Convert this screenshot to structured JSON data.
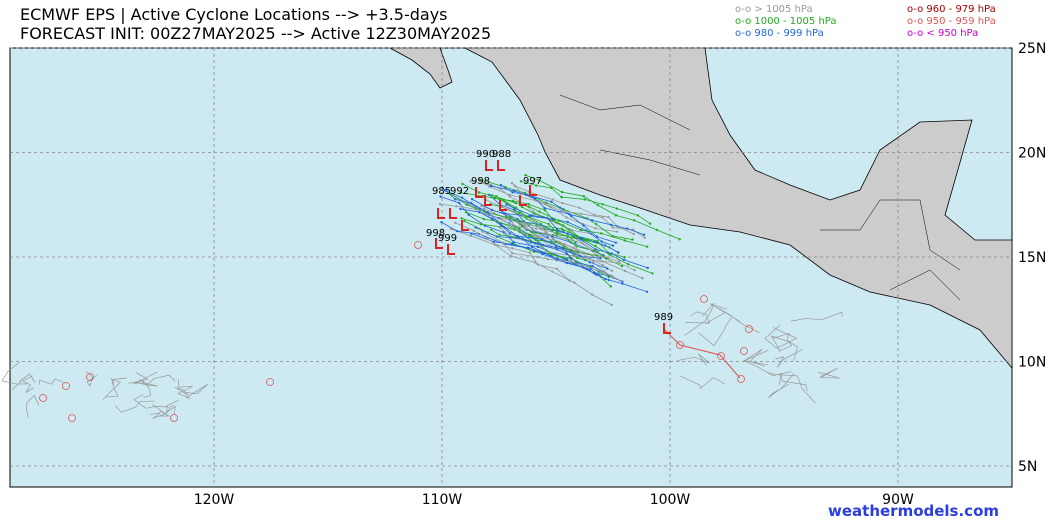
{
  "header": {
    "title_line1": "ECMWF EPS | Active Cyclone Locations --> +3.5-days",
    "title_line2": "FORECAST INIT: 00Z27MAY2025 --> Active 12Z30MAY2025"
  },
  "legend": [
    {
      "label": "o-o > 1005 hPa",
      "color": "#999999"
    },
    {
      "label": "o-o 1000 - 1005 hPa",
      "color": "#22aa22"
    },
    {
      "label": "o-o 980 - 999 hPa",
      "color": "#2266dd"
    },
    {
      "label": "o-o 960 - 979 hPa",
      "color": "#aa0000"
    },
    {
      "label": "o-o 950 - 959 hPa",
      "color": "#dd5555"
    },
    {
      "label": "o-o < 950 hPa",
      "color": "#cc00cc"
    }
  ],
  "lon_ticks": [
    {
      "value": -120,
      "label": "120W"
    },
    {
      "value": -110,
      "label": "110W"
    },
    {
      "value": -100,
      "label": "100W"
    },
    {
      "value": -90,
      "label": "90W"
    }
  ],
  "lat_ticks": [
    {
      "value": 25,
      "label": "25N"
    },
    {
      "value": 20,
      "label": "20N"
    },
    {
      "value": 15,
      "label": "15N"
    },
    {
      "value": 10,
      "label": "10N"
    },
    {
      "value": 5,
      "label": "5N"
    }
  ],
  "pressure_labels": [
    "990",
    "988",
    "997",
    "998",
    "985",
    "992",
    "998",
    "999",
    "989"
  ],
  "watermark": "weathermodels.com"
}
